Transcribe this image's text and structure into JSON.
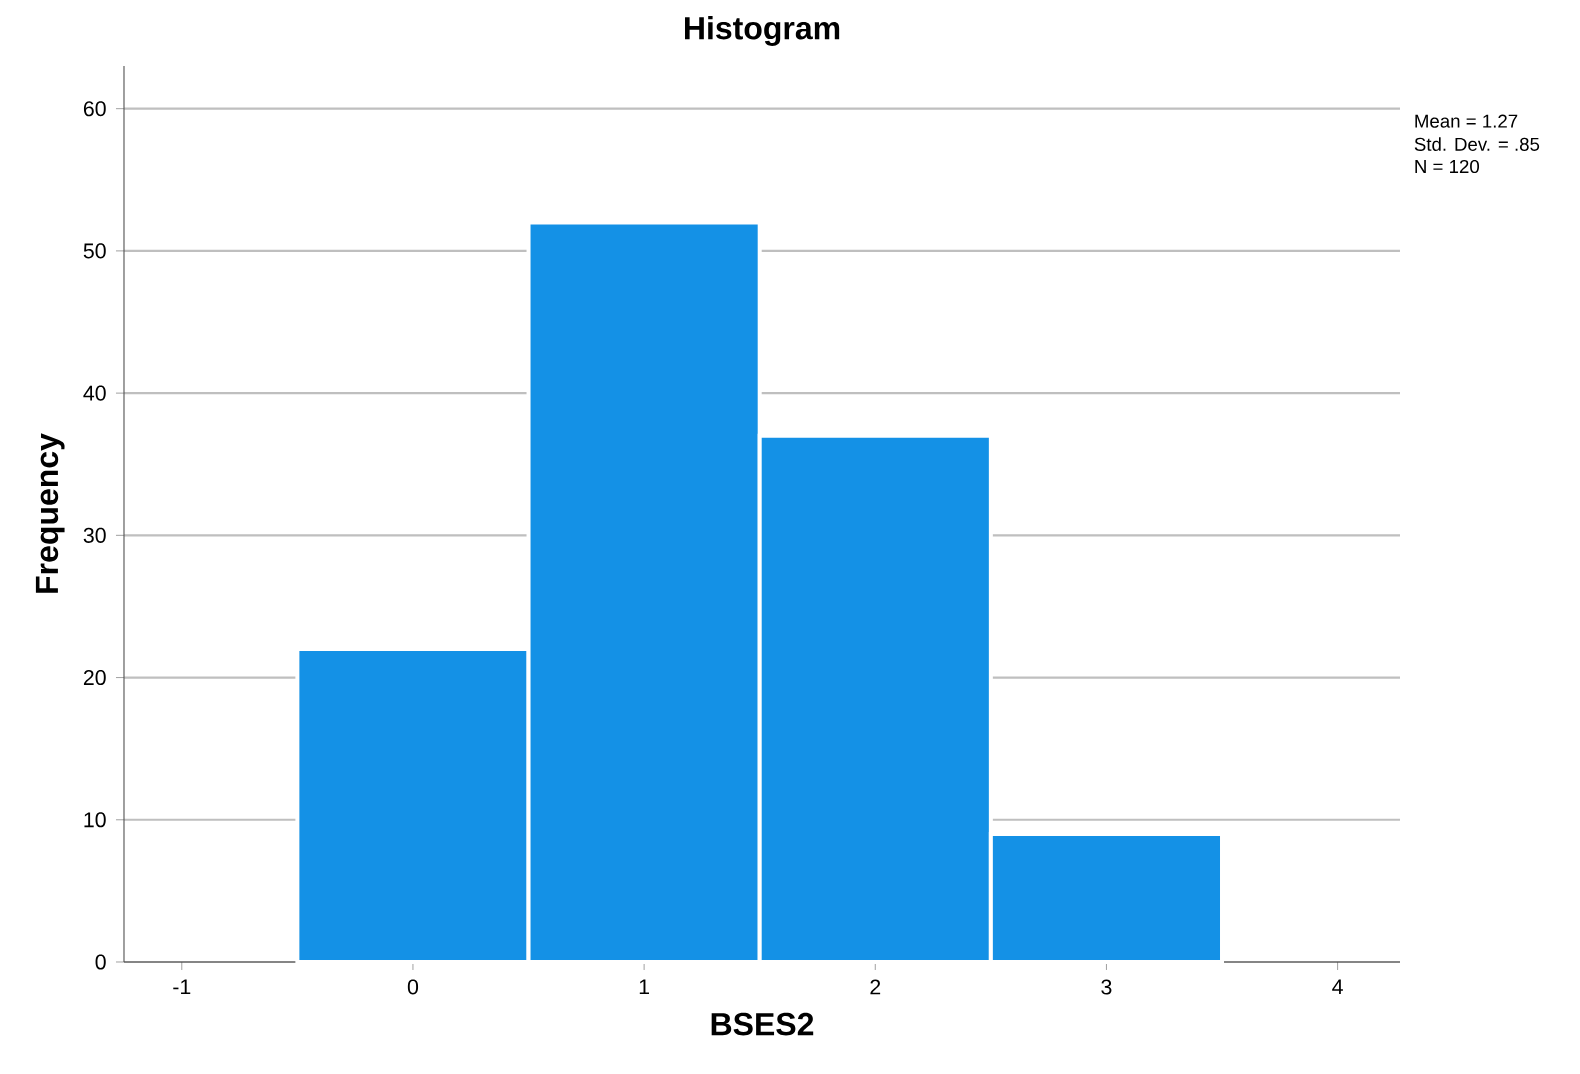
{
  "chart_data": {
    "type": "histogram",
    "title": "Histogram",
    "xlabel": "BSES2",
    "ylabel": "Frequency",
    "bins": [
      -0.5,
      0.5,
      1.5,
      2.5,
      3.5
    ],
    "values": [
      22,
      52,
      37,
      9
    ],
    "color": "#1491e6",
    "xlim": [
      -1.25,
      4.27
    ],
    "xticks": [
      -1,
      0,
      1,
      2,
      3,
      4
    ],
    "ylim": [
      0,
      63
    ],
    "yticks": [
      0,
      10,
      20,
      30,
      40,
      50,
      60
    ],
    "grid": "y",
    "annotations": [
      "Mean = 1.27",
      "Std. Dev. = .85",
      "N = 120"
    ]
  }
}
